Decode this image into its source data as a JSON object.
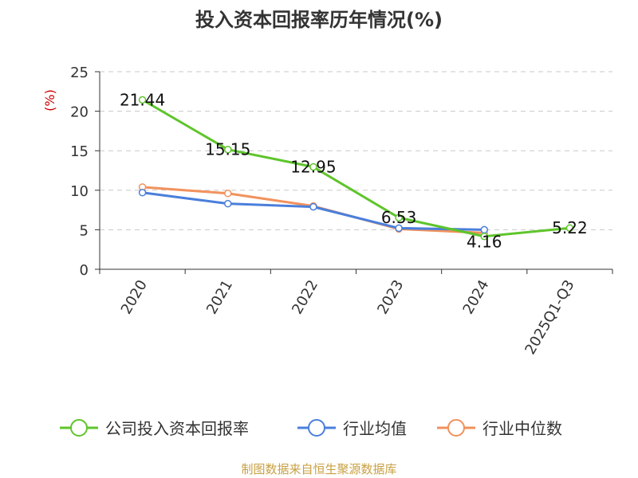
{
  "chart_data": {
    "type": "line",
    "title": "投入资本回报率历年情况(%)",
    "ylabel": "(%)",
    "xlabel": "",
    "categories": [
      "2020",
      "2021",
      "2022",
      "2023",
      "2024",
      "2025Q1-Q3"
    ],
    "ylim": [
      0,
      25
    ],
    "yticks": [
      0,
      5,
      10,
      15,
      20,
      25
    ],
    "grid": true,
    "legend_position": "bottom",
    "series": [
      {
        "name": "公司投入资本回报率",
        "color": "#5ec52b",
        "values": [
          21.44,
          15.15,
          12.95,
          6.53,
          4.16,
          5.22
        ],
        "labels": [
          "21.44",
          "15.15",
          "12.95",
          "6.53",
          "4.16",
          "5.22"
        ]
      },
      {
        "name": "行业均值",
        "color": "#4a7fdb",
        "values": [
          9.7,
          8.3,
          7.9,
          5.2,
          5.0,
          null
        ]
      },
      {
        "name": "行业中位数",
        "color": "#f2915c",
        "values": [
          10.4,
          9.6,
          8.0,
          5.1,
          4.6,
          null
        ]
      }
    ]
  },
  "source": "制图数据来自恒生聚源数据库"
}
